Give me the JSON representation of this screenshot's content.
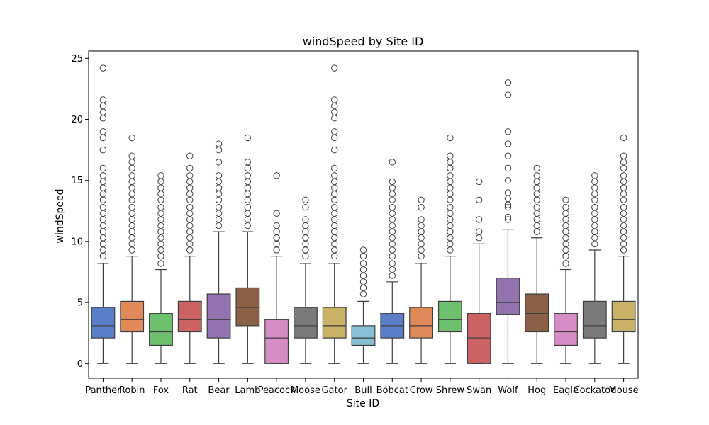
{
  "chart_data": {
    "type": "box",
    "title": "windSpeed by Site ID",
    "xlabel": "Site ID",
    "ylabel": "windSpeed",
    "ylim": [
      -1.2,
      25.6
    ],
    "yticks": [
      0,
      5,
      10,
      15,
      20,
      25
    ],
    "grid": false,
    "legend": "none",
    "categories": [
      "Panther",
      "Robin",
      "Fox",
      "Rat",
      "Bear",
      "Lamb",
      "Peacock",
      "Moose",
      "Gator",
      "Bull",
      "Bobcat",
      "Crow",
      "Shrew",
      "Swan",
      "Wolf",
      "Hog",
      "Eagle",
      "Cockatoo",
      "Mouse"
    ],
    "colors": [
      "#5b7ec9",
      "#e08a5a",
      "#6ebf6e",
      "#cc6262",
      "#9273b0",
      "#8a6147",
      "#d68cc4",
      "#7a7a7a",
      "#c9b268",
      "#86bfd6",
      "#5b7ec9",
      "#e08a5a",
      "#6ebf6e",
      "#cc6262",
      "#9273b0",
      "#8a6147",
      "#d68cc4",
      "#7a7a7a",
      "#c9b268"
    ],
    "boxes": [
      {
        "min": 0,
        "q1": 2.1,
        "median": 3.1,
        "q3": 4.6,
        "max": 8.2,
        "outliers": [
          8.8,
          9.3,
          9.8,
          10.3,
          10.8,
          11.3,
          11.8,
          12.3,
          12.8,
          13.4,
          13.9,
          14.4,
          14.9,
          15.4,
          16.0,
          17.5,
          18.5,
          19.0,
          20.1,
          20.6,
          21.1,
          21.6,
          24.2
        ]
      },
      {
        "min": 0,
        "q1": 2.6,
        "median": 3.6,
        "q3": 5.1,
        "max": 8.8,
        "outliers": [
          9.3,
          9.8,
          10.3,
          10.8,
          11.3,
          11.8,
          12.3,
          12.8,
          13.4,
          13.9,
          14.4,
          14.9,
          15.4,
          16.0,
          16.5,
          17.0,
          18.5
        ]
      },
      {
        "min": 0,
        "q1": 1.5,
        "median": 2.6,
        "q3": 4.1,
        "max": 7.7,
        "outliers": [
          8.2,
          8.8,
          9.3,
          9.8,
          10.3,
          10.8,
          11.3,
          11.8,
          12.3,
          12.8,
          13.4,
          13.9,
          14.4,
          14.9,
          15.4
        ]
      },
      {
        "min": 0,
        "q1": 2.6,
        "median": 3.6,
        "q3": 5.1,
        "max": 8.8,
        "outliers": [
          9.3,
          9.8,
          10.3,
          10.8,
          11.3,
          11.8,
          12.3,
          12.8,
          13.4,
          13.9,
          14.4,
          14.9,
          15.4,
          16.0,
          17.0
        ]
      },
      {
        "min": 0,
        "q1": 2.1,
        "median": 3.6,
        "q3": 5.7,
        "max": 10.8,
        "outliers": [
          11.3,
          11.8,
          12.3,
          12.8,
          13.4,
          13.9,
          14.4,
          14.9,
          15.4,
          16.5,
          17.5,
          18.0
        ]
      },
      {
        "min": 0,
        "q1": 3.1,
        "median": 4.6,
        "q3": 6.2,
        "max": 10.8,
        "outliers": [
          11.3,
          11.8,
          12.3,
          12.8,
          13.4,
          13.9,
          14.4,
          14.9,
          15.4,
          16.0,
          16.5,
          18.5
        ]
      },
      {
        "min": 0,
        "q1": 0,
        "median": 2.1,
        "q3": 3.6,
        "max": 8.8,
        "outliers": [
          9.3,
          9.8,
          10.3,
          10.8,
          11.3,
          12.3,
          15.4
        ]
      },
      {
        "min": 0,
        "q1": 2.1,
        "median": 3.1,
        "q3": 4.6,
        "max": 8.2,
        "outliers": [
          8.8,
          9.3,
          9.8,
          10.3,
          10.8,
          11.3,
          11.8,
          12.8,
          13.4
        ]
      },
      {
        "min": 0,
        "q1": 2.1,
        "median": 3.1,
        "q3": 4.6,
        "max": 8.2,
        "outliers": [
          8.8,
          9.3,
          9.8,
          10.3,
          10.8,
          11.3,
          11.8,
          12.3,
          12.8,
          13.4,
          13.9,
          14.4,
          14.9,
          15.4,
          16.0,
          17.5,
          18.5,
          19.0,
          20.1,
          20.6,
          21.1,
          21.6,
          24.2
        ]
      },
      {
        "min": 0,
        "q1": 1.5,
        "median": 2.1,
        "q3": 3.1,
        "max": 5.1,
        "outliers": [
          5.7,
          6.2,
          6.7,
          7.2,
          7.7,
          8.2,
          8.8,
          9.3
        ]
      },
      {
        "min": 0,
        "q1": 2.1,
        "median": 3.1,
        "q3": 4.1,
        "max": 6.7,
        "outliers": [
          7.2,
          7.7,
          8.2,
          8.8,
          9.3,
          9.8,
          10.3,
          10.8,
          11.3,
          11.8,
          12.3,
          12.8,
          13.4,
          13.9,
          14.4,
          14.9,
          16.5
        ]
      },
      {
        "min": 0,
        "q1": 2.1,
        "median": 3.1,
        "q3": 4.6,
        "max": 8.2,
        "outliers": [
          8.8,
          9.3,
          9.8,
          10.3,
          10.8,
          11.3,
          11.8,
          12.8,
          13.4
        ]
      },
      {
        "min": 0,
        "q1": 2.6,
        "median": 3.6,
        "q3": 5.1,
        "max": 8.8,
        "outliers": [
          9.3,
          9.8,
          10.3,
          10.8,
          11.3,
          11.8,
          12.3,
          12.8,
          13.4,
          13.9,
          14.4,
          14.9,
          15.4,
          16.0,
          16.5,
          17.0,
          18.5
        ]
      },
      {
        "min": 0,
        "q1": 0,
        "median": 2.1,
        "q3": 4.1,
        "max": 9.8,
        "outliers": [
          10.3,
          10.8,
          11.8,
          13.4,
          14.9
        ]
      },
      {
        "min": 0,
        "q1": 4.0,
        "median": 5.0,
        "q3": 7.0,
        "max": 11.0,
        "outliers": [
          11.8,
          12.0,
          12.8,
          13.0,
          13.5,
          14.0,
          15.0,
          16.0,
          17.0,
          18.0,
          19.0,
          22.0,
          23.0
        ]
      },
      {
        "min": 0,
        "q1": 2.6,
        "median": 4.1,
        "q3": 5.7,
        "max": 10.3,
        "outliers": [
          10.8,
          11.3,
          11.8,
          12.3,
          12.8,
          13.4,
          13.9,
          14.4,
          14.9,
          15.4,
          16.0
        ]
      },
      {
        "min": 0,
        "q1": 1.5,
        "median": 2.6,
        "q3": 4.1,
        "max": 7.7,
        "outliers": [
          8.2,
          8.8,
          9.3,
          9.8,
          10.3,
          10.8,
          11.3,
          11.8,
          12.3,
          12.8,
          13.4
        ]
      },
      {
        "min": 0,
        "q1": 2.1,
        "median": 3.1,
        "q3": 5.1,
        "max": 9.3,
        "outliers": [
          9.8,
          10.3,
          10.8,
          11.3,
          11.8,
          12.3,
          12.8,
          13.4,
          13.9,
          14.4,
          14.9,
          15.4
        ]
      },
      {
        "min": 0,
        "q1": 2.6,
        "median": 3.6,
        "q3": 5.1,
        "max": 8.8,
        "outliers": [
          9.3,
          9.8,
          10.3,
          10.8,
          11.3,
          11.8,
          12.3,
          12.8,
          13.4,
          13.9,
          14.4,
          14.9,
          15.4,
          16.0,
          16.5,
          17.0,
          18.5
        ]
      }
    ]
  }
}
